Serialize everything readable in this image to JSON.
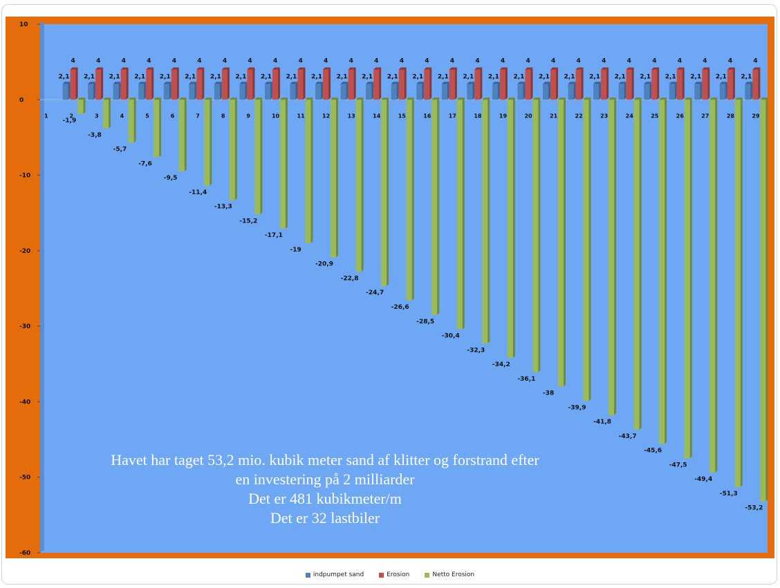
{
  "chart_data": {
    "type": "bar",
    "categories": [
      "1",
      "2",
      "3",
      "4",
      "5",
      "6",
      "7",
      "8",
      "9",
      "10",
      "11",
      "12",
      "13",
      "14",
      "15",
      "16",
      "17",
      "18",
      "19",
      "20",
      "21",
      "22",
      "23",
      "24",
      "25",
      "26",
      "27",
      "28",
      "29"
    ],
    "series": [
      {
        "name": "indpumpet sand",
        "color": "#4f81bd",
        "values": [
          null,
          2.1,
          2.1,
          2.1,
          2.1,
          2.1,
          2.1,
          2.1,
          2.1,
          2.1,
          2.1,
          2.1,
          2.1,
          2.1,
          2.1,
          2.1,
          2.1,
          2.1,
          2.1,
          2.1,
          2.1,
          2.1,
          2.1,
          2.1,
          2.1,
          2.1,
          2.1,
          2.1,
          2.1
        ],
        "labels": [
          "",
          "2,1",
          "2,1",
          "2,1",
          "2,1",
          "2,1",
          "2,1",
          "2,1",
          "2,1",
          "2,1",
          "2,1",
          "2,1",
          "2,1",
          "2,1",
          "2,1",
          "2,1",
          "2,1",
          "2,1",
          "2,1",
          "2,1",
          "2,1",
          "2,1",
          "2,1",
          "2,1",
          "2,1",
          "2,1",
          "2,1",
          "2,1",
          "2,1"
        ]
      },
      {
        "name": "Erosion",
        "color": "#c0504d",
        "values": [
          null,
          4,
          4,
          4,
          4,
          4,
          4,
          4,
          4,
          4,
          4,
          4,
          4,
          4,
          4,
          4,
          4,
          4,
          4,
          4,
          4,
          4,
          4,
          4,
          4,
          4,
          4,
          4,
          4
        ],
        "labels": [
          "",
          "4",
          "4",
          "4",
          "4",
          "4",
          "4",
          "4",
          "4",
          "4",
          "4",
          "4",
          "4",
          "4",
          "4",
          "4",
          "4",
          "4",
          "4",
          "4",
          "4",
          "4",
          "4",
          "4",
          "4",
          "4",
          "4",
          "4",
          "4"
        ]
      },
      {
        "name": "Netto Erosion",
        "color": "#9bbb59",
        "values": [
          null,
          -1.9,
          -3.8,
          -5.7,
          -7.6,
          -9.5,
          -11.4,
          -13.3,
          -15.2,
          -17.1,
          -19,
          -20.9,
          -22.8,
          -24.7,
          -26.6,
          -28.5,
          -30.4,
          -32.3,
          -34.2,
          -36.1,
          -38,
          -39.9,
          -41.8,
          -43.7,
          -45.6,
          -47.5,
          -49.4,
          -51.3,
          -53.2
        ],
        "labels": [
          "",
          "-1,9",
          "-3,8",
          "-5,7",
          "-7,6",
          "-9,5",
          "-11,4",
          "-13,3",
          "-15,2",
          "-17,1",
          "-19",
          "-20,9",
          "-22,8",
          "-24,7",
          "-26,6",
          "-28,5",
          "-30,4",
          "-32,3",
          "-34,2",
          "-36,1",
          "-38",
          "-39,9",
          "-41,8",
          "-43,7",
          "-45,6",
          "-47,5",
          "-49,4",
          "-51,3",
          "-53,2"
        ]
      }
    ],
    "yticks": [
      "10",
      "0",
      "-10",
      "-20",
      "-30",
      "-40",
      "-50",
      "-60"
    ],
    "ylim": [
      -60,
      10
    ],
    "legend_position": "bottom",
    "plot_background": "#6ea8f5",
    "frame_color": "#e46c0a",
    "annotation": [
      "Havet har taget 53,2 mio. kubik meter  sand af klitter og forstrand efter",
      "en investering  på 2 milliarder",
      "Det er 481 kubikmeter/m",
      "Det er 32 lastbiler"
    ]
  }
}
